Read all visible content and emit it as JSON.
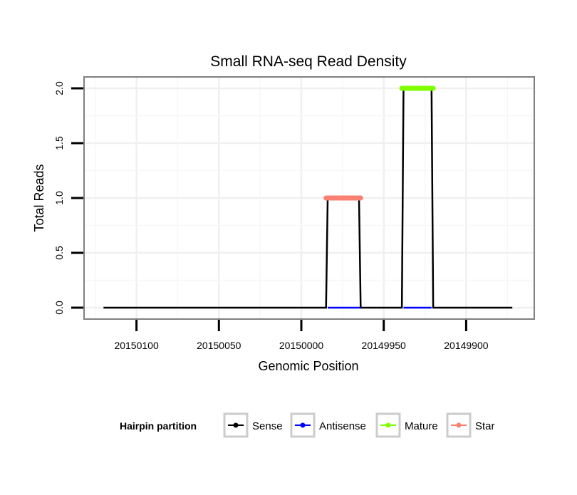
{
  "chart_data": {
    "type": "line",
    "title": "Small RNA-seq Read Density",
    "xlabel": "Genomic Position",
    "ylabel": "Total Reads",
    "xlim": [
      20150132,
      20149858
    ],
    "x_reversed": true,
    "ylim": [
      -0.1,
      2.1
    ],
    "xticks": [
      20150100,
      20150050,
      20150000,
      20149950,
      20149900
    ],
    "xtick_labels": [
      "20150100",
      "20150050",
      "20150000",
      "20149950",
      "20149900"
    ],
    "yticks": [
      0,
      0.5,
      1,
      1.5,
      2
    ],
    "ytick_labels": [
      "0.0",
      "0.5",
      "1.0",
      "1.5",
      "2.0"
    ],
    "grid": true,
    "legend": {
      "title": "Hairpin partition",
      "placement": "bottom",
      "entries": [
        "Sense",
        "Antisense",
        "Mature",
        "Star"
      ]
    },
    "series": [
      {
        "name": "Sense",
        "color": "#000000",
        "x": [
          20150120,
          20149985,
          20149984,
          20149965,
          20149964,
          20149939,
          20149938,
          20149921,
          20149920,
          20149872
        ],
        "y": [
          0,
          0,
          1,
          1,
          0,
          0,
          2,
          2,
          0,
          0
        ]
      },
      {
        "name": "Antisense",
        "color": "#0000ff",
        "x": [
          20149984,
          20149964
        ],
        "y": [
          0,
          0
        ]
      },
      {
        "name": "Antisense",
        "color": "#0000ff",
        "x": [
          20149938,
          20149921
        ],
        "y": [
          0,
          0
        ]
      },
      {
        "name": "Mature",
        "color": "#7fff00",
        "x": [
          20149939,
          20149920
        ],
        "y": [
          2,
          2
        ]
      },
      {
        "name": "Star",
        "color": "#fa8072",
        "x": [
          20149985,
          20149964
        ],
        "y": [
          1,
          1
        ]
      }
    ]
  }
}
